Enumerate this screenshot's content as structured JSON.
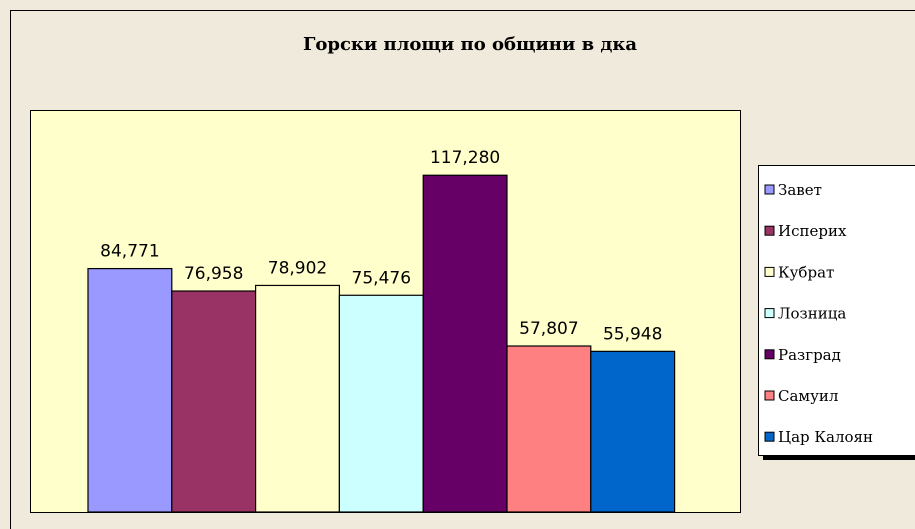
{
  "chart_data": {
    "type": "bar",
    "title": "Горски площи по общини в дка",
    "categories": [
      "Завет",
      "Исперих",
      "Кубрат",
      "Лозница",
      "Разград",
      "Самуил",
      "Цар Калоян"
    ],
    "values": [
      84771,
      76958,
      78902,
      75476,
      117280,
      57807,
      55948
    ],
    "value_labels": [
      "84,771",
      "76,958",
      "78,902",
      "75,476",
      "117,280",
      "57,807",
      "55,948"
    ],
    "colors": [
      "#9999ff",
      "#993366",
      "#ffffcc",
      "#ccffff",
      "#660066",
      "#ff8080",
      "#0066cc"
    ],
    "ylim": [
      0,
      140000
    ],
    "legend": "right"
  }
}
